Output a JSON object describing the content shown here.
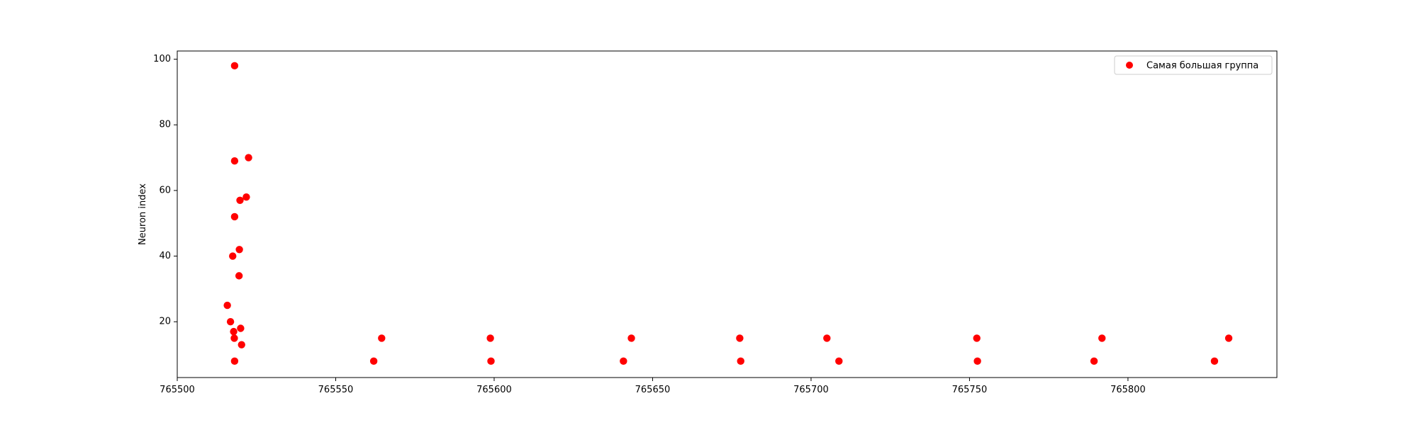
{
  "chart_data": {
    "type": "scatter",
    "title": "",
    "xlabel": "",
    "ylabel": "Neuron index",
    "xlim": [
      765500,
      765847
    ],
    "ylim": [
      3,
      102.5
    ],
    "xticks": [
      765500,
      765550,
      765600,
      765650,
      765700,
      765750,
      765800
    ],
    "yticks": [
      20,
      40,
      60,
      80,
      100
    ],
    "grid": false,
    "legend_position": "top-right",
    "series": [
      {
        "name": "Самая большая группа",
        "color": "#ff0000",
        "marker": "circle",
        "points": [
          {
            "x": 765518.1,
            "y": 98
          },
          {
            "x": 765522.5,
            "y": 70
          },
          {
            "x": 765518.1,
            "y": 69
          },
          {
            "x": 765521.8,
            "y": 58
          },
          {
            "x": 765519.8,
            "y": 57
          },
          {
            "x": 765518.1,
            "y": 52
          },
          {
            "x": 765519.6,
            "y": 42
          },
          {
            "x": 765517.5,
            "y": 40
          },
          {
            "x": 765519.5,
            "y": 34
          },
          {
            "x": 765515.8,
            "y": 25
          },
          {
            "x": 765516.8,
            "y": 20
          },
          {
            "x": 765520.0,
            "y": 18
          },
          {
            "x": 765517.8,
            "y": 17
          },
          {
            "x": 765518.0,
            "y": 15
          },
          {
            "x": 765520.3,
            "y": 13
          },
          {
            "x": 765518.1,
            "y": 8
          },
          {
            "x": 765564.5,
            "y": 15
          },
          {
            "x": 765562.0,
            "y": 8
          },
          {
            "x": 765598.8,
            "y": 15
          },
          {
            "x": 765599.0,
            "y": 8
          },
          {
            "x": 765643.3,
            "y": 15
          },
          {
            "x": 765640.8,
            "y": 8
          },
          {
            "x": 765677.5,
            "y": 15
          },
          {
            "x": 765677.8,
            "y": 8
          },
          {
            "x": 765705.0,
            "y": 15
          },
          {
            "x": 765708.8,
            "y": 8
          },
          {
            "x": 765752.3,
            "y": 15
          },
          {
            "x": 765752.5,
            "y": 8
          },
          {
            "x": 765791.8,
            "y": 15
          },
          {
            "x": 765789.3,
            "y": 8
          },
          {
            "x": 765831.8,
            "y": 15
          },
          {
            "x": 765827.3,
            "y": 8
          }
        ]
      }
    ]
  }
}
